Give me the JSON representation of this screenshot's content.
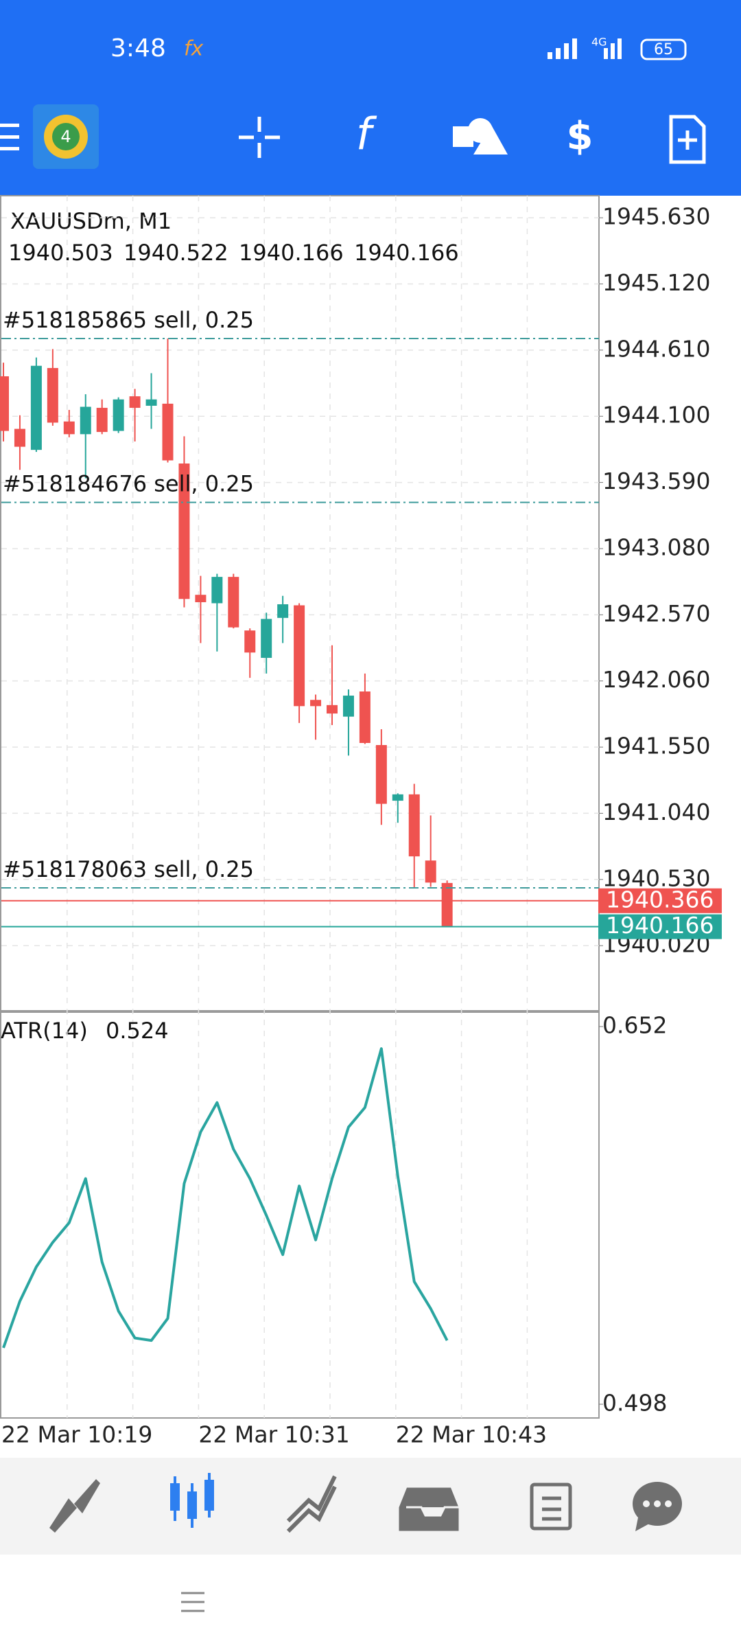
{
  "status_bar": {
    "time": "3:48",
    "network": "4G",
    "battery": "65"
  },
  "chart_data": [
    {
      "type": "candlestick",
      "title": "XAUUSDm, M1",
      "categories": [
        "22 Mar 10:19",
        null,
        null,
        null,
        null,
        null,
        null,
        null,
        null,
        null,
        null,
        null,
        "22 Mar 10:31",
        null,
        null,
        null,
        null,
        null,
        null,
        null,
        null,
        null,
        null,
        null,
        "22 Mar 10:43",
        null,
        null,
        null
      ],
      "open": [
        1944.408,
        1944.003,
        1943.841,
        1944.472,
        1944.06,
        1943.962,
        1944.165,
        1943.987,
        1944.254,
        1944.181,
        1944.197,
        1943.736,
        1942.724,
        1942.659,
        1942.862,
        1942.449,
        1942.238,
        1942.546,
        1942.643,
        1941.914,
        1941.874,
        1941.785,
        1941.979,
        1941.566,
        1941.137,
        1941.186,
        1940.676,
        1940.503
      ],
      "high": [
        1944.513,
        1944.108,
        1944.553,
        1944.618,
        1944.149,
        1944.27,
        1944.23,
        1944.246,
        1944.311,
        1944.432,
        1944.699,
        1943.946,
        1942.87,
        1942.886,
        1942.886,
        1942.465,
        1942.586,
        1942.716,
        1942.659,
        1941.955,
        1942.335,
        1941.995,
        1942.117,
        1941.688,
        1941.194,
        1941.267,
        1941.024,
        1940.522
      ],
      "low": [
        1943.906,
        1943.687,
        1943.825,
        1944.027,
        1943.938,
        1943.622,
        1943.962,
        1943.971,
        1943.906,
        1944.003,
        1943.744,
        1942.627,
        1942.352,
        1942.287,
        1942.465,
        1942.084,
        1942.117,
        1942.352,
        1941.736,
        1941.607,
        1941.72,
        1941.485,
        1941.574,
        1940.951,
        1940.967,
        1940.465,
        1940.473,
        1940.166
      ],
      "close": [
        1943.987,
        1943.865,
        1944.489,
        1944.051,
        1943.962,
        1944.173,
        1943.979,
        1944.23,
        1944.165,
        1944.23,
        1943.76,
        1942.692,
        1942.667,
        1942.862,
        1942.473,
        1942.279,
        1942.538,
        1942.651,
        1941.866,
        1941.866,
        1941.809,
        1941.947,
        1941.582,
        1941.113,
        1941.186,
        1940.708,
        1940.506,
        1940.166
      ],
      "up_color": "#26a69a",
      "down_color": "#ef5350",
      "grid": true,
      "ylim": [
        1939.518,
        1945.8
      ],
      "yticks": [
        {
          "value": 1945.63,
          "label": "1945.630"
        },
        {
          "value": 1945.12,
          "label": "1945.120"
        },
        {
          "value": 1944.61,
          "label": "1944.610"
        },
        {
          "value": 1944.1,
          "label": "1944.100"
        },
        {
          "value": 1943.59,
          "label": "1943.590"
        },
        {
          "value": 1943.08,
          "label": "1943.080"
        },
        {
          "value": 1942.57,
          "label": "1942.570"
        },
        {
          "value": 1942.06,
          "label": "1942.060"
        },
        {
          "value": 1941.55,
          "label": "1941.550"
        },
        {
          "value": 1941.04,
          "label": "1941.040"
        },
        {
          "value": 1940.53,
          "label": "1940.530"
        },
        {
          "value": 1940.02,
          "label": "1940.020"
        }
      ],
      "orders": [
        {
          "label": "#518185865 sell, 0.25",
          "price": 1944.699
        },
        {
          "label": "#518184676 sell, 0.25",
          "price": 1943.436
        },
        {
          "label": "#518178063 sell, 0.25",
          "price": 1940.465
        }
      ],
      "ask": 1940.366,
      "bid": 1940.166
    },
    {
      "type": "line",
      "title": "ATR(14)",
      "color": "#2aa5a0",
      "values": [
        0.521,
        0.54,
        0.554,
        0.564,
        0.572,
        0.59,
        0.556,
        0.536,
        0.525,
        0.524,
        0.533,
        0.588,
        0.609,
        0.621,
        0.602,
        0.59,
        0.575,
        0.559,
        0.587,
        0.565,
        0.59,
        0.611,
        0.619,
        0.643,
        0.591,
        0.548,
        0.537,
        0.524
      ],
      "ylim": [
        0.4924,
        0.6576
      ],
      "yticks": [
        0.652,
        0.498
      ]
    }
  ]
}
